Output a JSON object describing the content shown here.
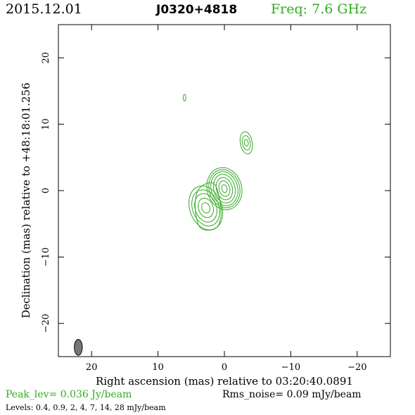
{
  "header": {
    "date": "2015.12.01",
    "source": "J0320+4818",
    "freq": "Freq: 7.6 GHz",
    "freq_color": "#33aa22"
  },
  "footer": {
    "peak": "Peak_lev=  0.036 Jy/beam",
    "peak_color": "#33aa22",
    "rms": "Rms_noise= 0.09 mJy/beam",
    "levels": "Levels: 0.4, 0.9,   2,   4,   7,  14,  28 mJy/beam"
  },
  "chart_data": {
    "type": "contour",
    "xlabel": "Right ascension (mas) relative to 03:20:40.0891",
    "ylabel": "Declination (mas) relative to +48:18:01.256",
    "xlim": [
      25,
      -25
    ],
    "ylim": [
      -25,
      25
    ],
    "xticks": [
      20,
      10,
      0,
      -10,
      -20
    ],
    "xtick_labels": [
      "20",
      "10",
      "0",
      "−10",
      "−20"
    ],
    "yticks": [
      -20,
      -10,
      0,
      10,
      20
    ],
    "ytick_labels": [
      "−20",
      "−10",
      "0",
      "10",
      "20"
    ],
    "contour_color": "#33aa22",
    "contour_levels_mJy": [
      0.4,
      0.9,
      2,
      4,
      7,
      14,
      28
    ],
    "peak_Jy_per_beam": 0.036,
    "rms_mJy_per_beam": 0.09,
    "components": [
      {
        "x": 0.0,
        "y": 0.3,
        "rx": [
          2.6,
          2.3,
          2.0,
          1.6,
          1.2,
          0.8,
          0.4
        ],
        "ry": [
          3.2,
          2.9,
          2.6,
          2.2,
          1.7,
          1.2,
          0.6
        ],
        "angle": -15
      },
      {
        "x": 2.8,
        "y": -2.6,
        "rx": [
          2.4,
          2.0,
          1.6,
          1.1,
          0.6
        ],
        "ry": [
          3.4,
          2.8,
          2.2,
          1.5,
          0.8
        ],
        "angle": -20
      },
      {
        "x": -3.3,
        "y": 7.2,
        "rx": [
          0.9,
          0.6,
          0.3
        ],
        "ry": [
          1.7,
          1.1,
          0.5
        ],
        "angle": -10
      },
      {
        "x": 6.0,
        "y": 14.0,
        "rx": [
          0.2
        ],
        "ry": [
          0.5
        ],
        "angle": 0
      }
    ],
    "envelope": [
      [
        3.8,
        0.3
      ],
      [
        1.5,
        1.0
      ],
      [
        0.5,
        -3.0
      ],
      [
        1.2,
        -5.6
      ],
      [
        3.6,
        -5.6
      ],
      [
        4.4,
        -2.5
      ]
    ],
    "beam": {
      "x": 22.0,
      "y": -23.6,
      "major": 2.4,
      "minor": 1.2,
      "angle": 0,
      "fill": "#777777"
    }
  }
}
